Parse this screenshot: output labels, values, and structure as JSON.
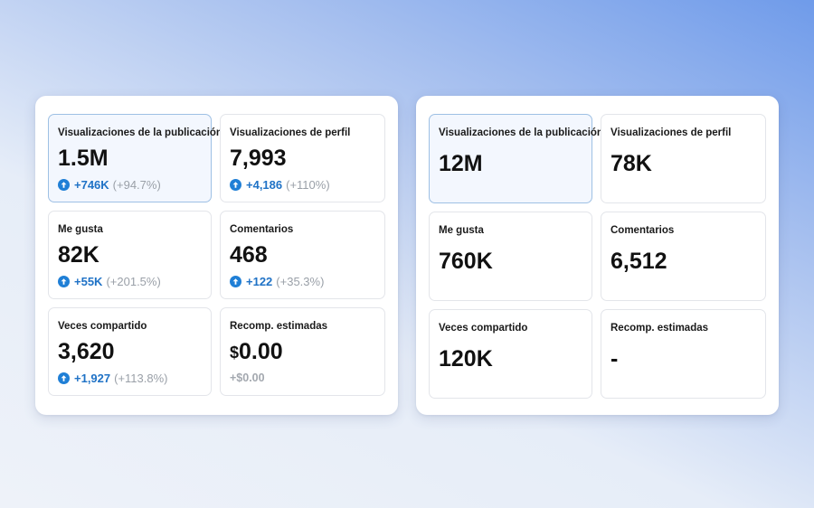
{
  "left_panel": {
    "cards": [
      {
        "label": "Visualizaciones de la publicación",
        "value": "1.5M",
        "delta": "+746K",
        "percent": "(+94.7%)",
        "icon": "arrow-up-circle-icon"
      },
      {
        "label": "Visualizaciones de perfil",
        "value": "7,993",
        "delta": "+4,186",
        "percent": "(+110%)",
        "icon": "arrow-up-circle-icon"
      },
      {
        "label": "Me gusta",
        "value": "82K",
        "delta": "+55K",
        "percent": "(+201.5%)",
        "icon": "arrow-up-circle-icon"
      },
      {
        "label": "Comentarios",
        "value": "468",
        "delta": "+122",
        "percent": "(+35.3%)",
        "icon": "arrow-up-circle-icon"
      },
      {
        "label": "Veces compartido",
        "value": "3,620",
        "delta": "+1,927",
        "percent": "(+113.8%)",
        "icon": "arrow-up-circle-icon"
      },
      {
        "label": "Recomp. estimadas",
        "currency": "$",
        "value": "0.00",
        "delta": "+$0.00"
      }
    ]
  },
  "right_panel": {
    "cards": [
      {
        "label": "Visualizaciones de la publicación",
        "value": "12M"
      },
      {
        "label": "Visualizaciones de perfil",
        "value": "78K"
      },
      {
        "label": "Me gusta",
        "value": "760K"
      },
      {
        "label": "Comentarios",
        "value": "6,512"
      },
      {
        "label": "Veces compartido",
        "value": "120K"
      },
      {
        "label": "Recomp. estimadas",
        "value": "-"
      }
    ]
  },
  "colors": {
    "accent": "#1f7fd6",
    "delta_text": "#1f72c6",
    "muted_text": "#9aa0a8",
    "selected_bg": "#f3f7fe",
    "selected_border": "#9ec0e4"
  }
}
